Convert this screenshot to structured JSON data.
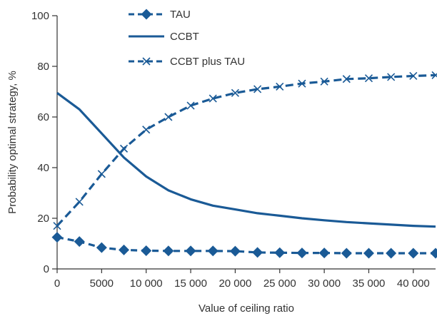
{
  "chart_data": {
    "type": "line",
    "xlabel": "Value of ceiling ratio",
    "ylabel": "Probability optimal strategy, %",
    "xlim": [
      0,
      42500
    ],
    "ylim": [
      0,
      100
    ],
    "x_ticks": [
      0,
      5000,
      10000,
      15000,
      20000,
      25000,
      30000,
      35000,
      40000
    ],
    "x_tick_labels": [
      "0",
      "5000",
      "10 000",
      "15 000",
      "20 000",
      "25 000",
      "30 000",
      "35 000",
      "40 000"
    ],
    "y_ticks": [
      0,
      20,
      40,
      60,
      80,
      100
    ],
    "y_tick_labels": [
      "0",
      "20",
      "40",
      "60",
      "80",
      "100"
    ],
    "grid": false,
    "legend_position": "top-left",
    "color": "#1a5a96",
    "series": [
      {
        "name": "TAU",
        "style": "dashed",
        "marker": "diamond",
        "x": [
          0,
          2500,
          5000,
          7500,
          10000,
          12500,
          15000,
          17500,
          20000,
          22500,
          25000,
          27500,
          30000,
          32500,
          35000,
          37500,
          40000,
          42500
        ],
        "y": [
          12.5,
          10.8,
          8.4,
          7.5,
          7.2,
          7.1,
          7.1,
          7.1,
          7.0,
          6.5,
          6.4,
          6.3,
          6.3,
          6.2,
          6.2,
          6.2,
          6.2,
          6.2
        ]
      },
      {
        "name": "CCBT",
        "style": "solid",
        "marker": "none",
        "x": [
          0,
          2500,
          5000,
          7500,
          10000,
          12500,
          15000,
          17500,
          20000,
          22500,
          25000,
          27500,
          30000,
          32500,
          35000,
          37500,
          40000,
          42500
        ],
        "y": [
          69.5,
          63,
          53.5,
          44,
          36.5,
          31,
          27.5,
          25,
          23.5,
          22,
          21,
          20,
          19.2,
          18.5,
          18,
          17.5,
          17,
          16.7
        ]
      },
      {
        "name": "CCBT plus TAU",
        "style": "dashed",
        "marker": "x",
        "x": [
          0,
          2500,
          5000,
          7500,
          10000,
          12500,
          15000,
          17500,
          20000,
          22500,
          25000,
          27500,
          30000,
          32500,
          35000,
          37500,
          40000,
          42500
        ],
        "y": [
          17,
          26.5,
          37.5,
          47.5,
          55,
          60,
          64.5,
          67.3,
          69.5,
          71,
          72,
          73.2,
          74,
          75,
          75.3,
          75.8,
          76.2,
          76.5
        ]
      }
    ]
  }
}
